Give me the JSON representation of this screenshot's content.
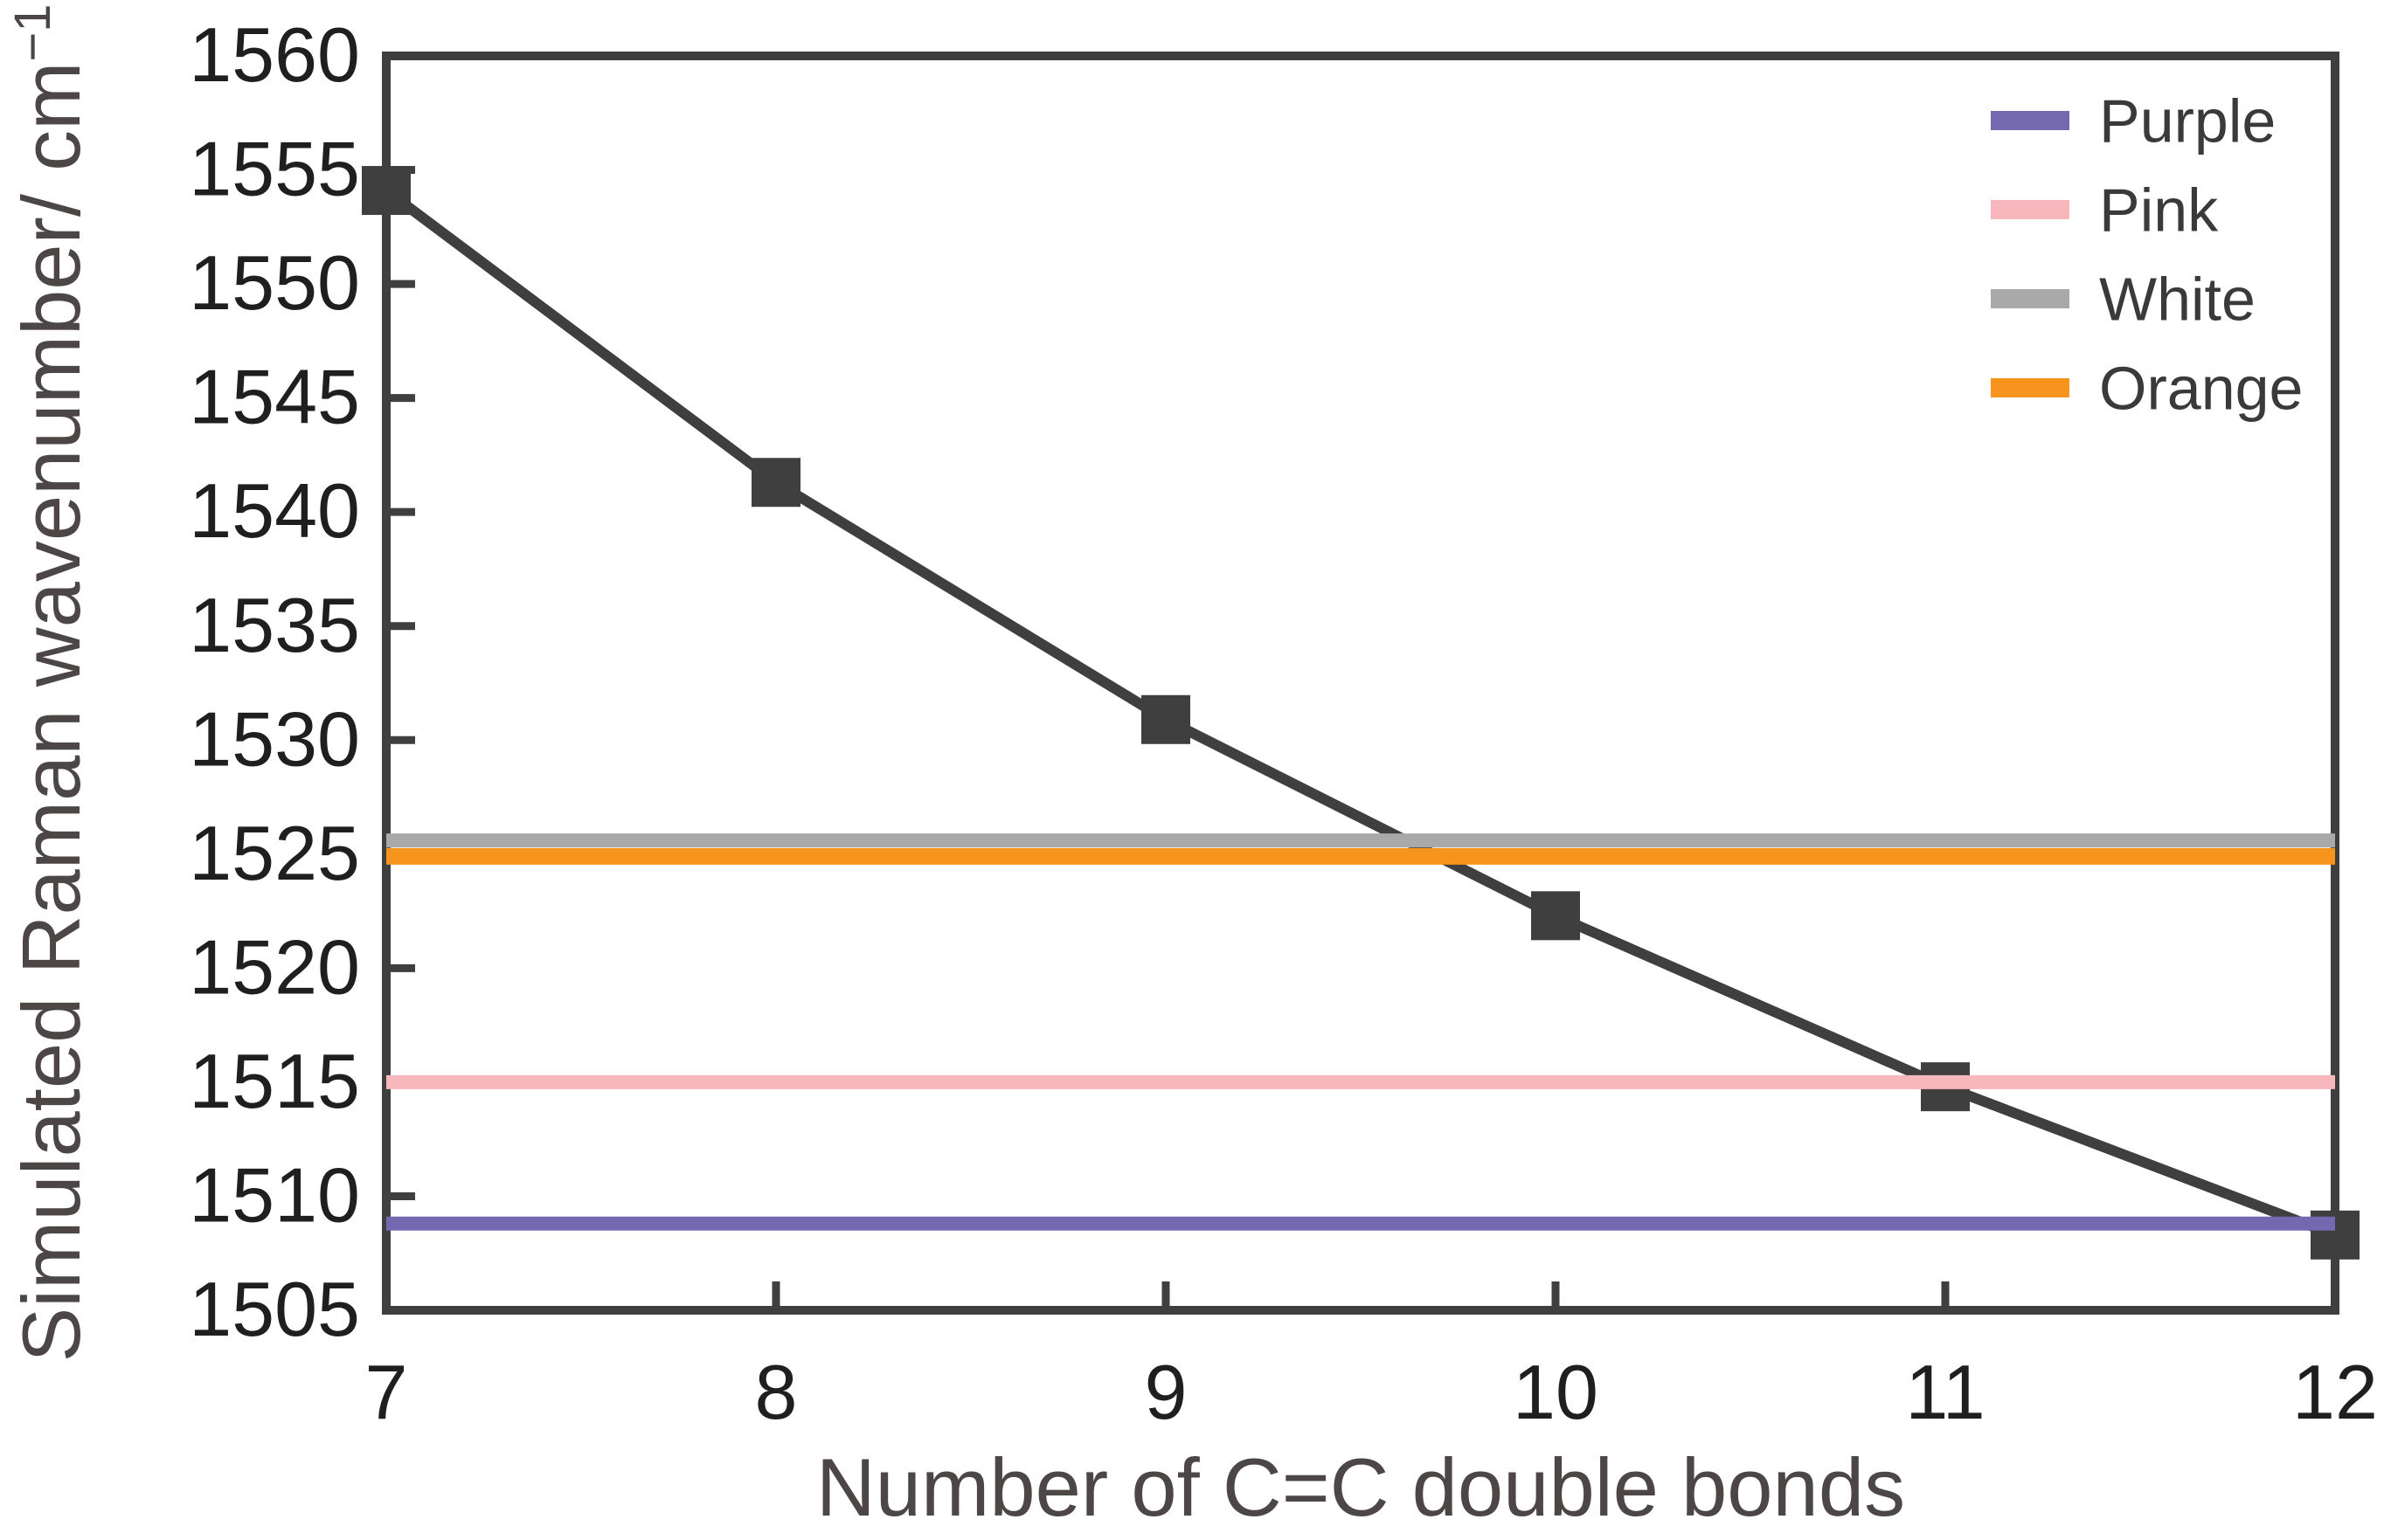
{
  "chart_data": {
    "type": "line",
    "title": "",
    "xlabel": "Number of C=C double bonds",
    "ylabel": "Simulated Raman wavenumber/ cm",
    "ylabel_superscript": "−1",
    "xlim": [
      7,
      12
    ],
    "ylim": [
      1505,
      1560
    ],
    "xticks": [
      7,
      8,
      9,
      10,
      11,
      12
    ],
    "yticks": [
      1560,
      1555,
      1550,
      1545,
      1540,
      1535,
      1530,
      1525,
      1520,
      1515,
      1510,
      1505
    ],
    "grid": false,
    "x": [
      7,
      8,
      9,
      10,
      11,
      12
    ],
    "series": [
      {
        "name": "Simulated Raman wavenumber",
        "kind": "line-markers",
        "marker": "square",
        "color": "#3f3f3f",
        "values": [
          1554.1,
          1541.3,
          1530.9,
          1522.3,
          1514.8,
          1508.3
        ]
      },
      {
        "name": "Purple",
        "kind": "hline",
        "color": "#7468b0",
        "value": 1508.8
      },
      {
        "name": "Pink",
        "kind": "hline",
        "color": "#f8b6bd",
        "value": 1515.0
      },
      {
        "name": "White",
        "kind": "hline",
        "color": "#a9a9a9",
        "value": 1525.6
      },
      {
        "name": "Orange",
        "kind": "hline",
        "color": "#f7941e",
        "value": 1524.9
      }
    ],
    "legend": {
      "position": "top-right",
      "entries": [
        "Purple",
        "Pink",
        "White",
        "Orange"
      ]
    }
  },
  "colors": {
    "frame": "#3f3f3f",
    "tick_label": "#1f1f1f",
    "axis_title": "#4c4746",
    "legend_text": "#3a3a3a",
    "background": "#ffffff"
  }
}
